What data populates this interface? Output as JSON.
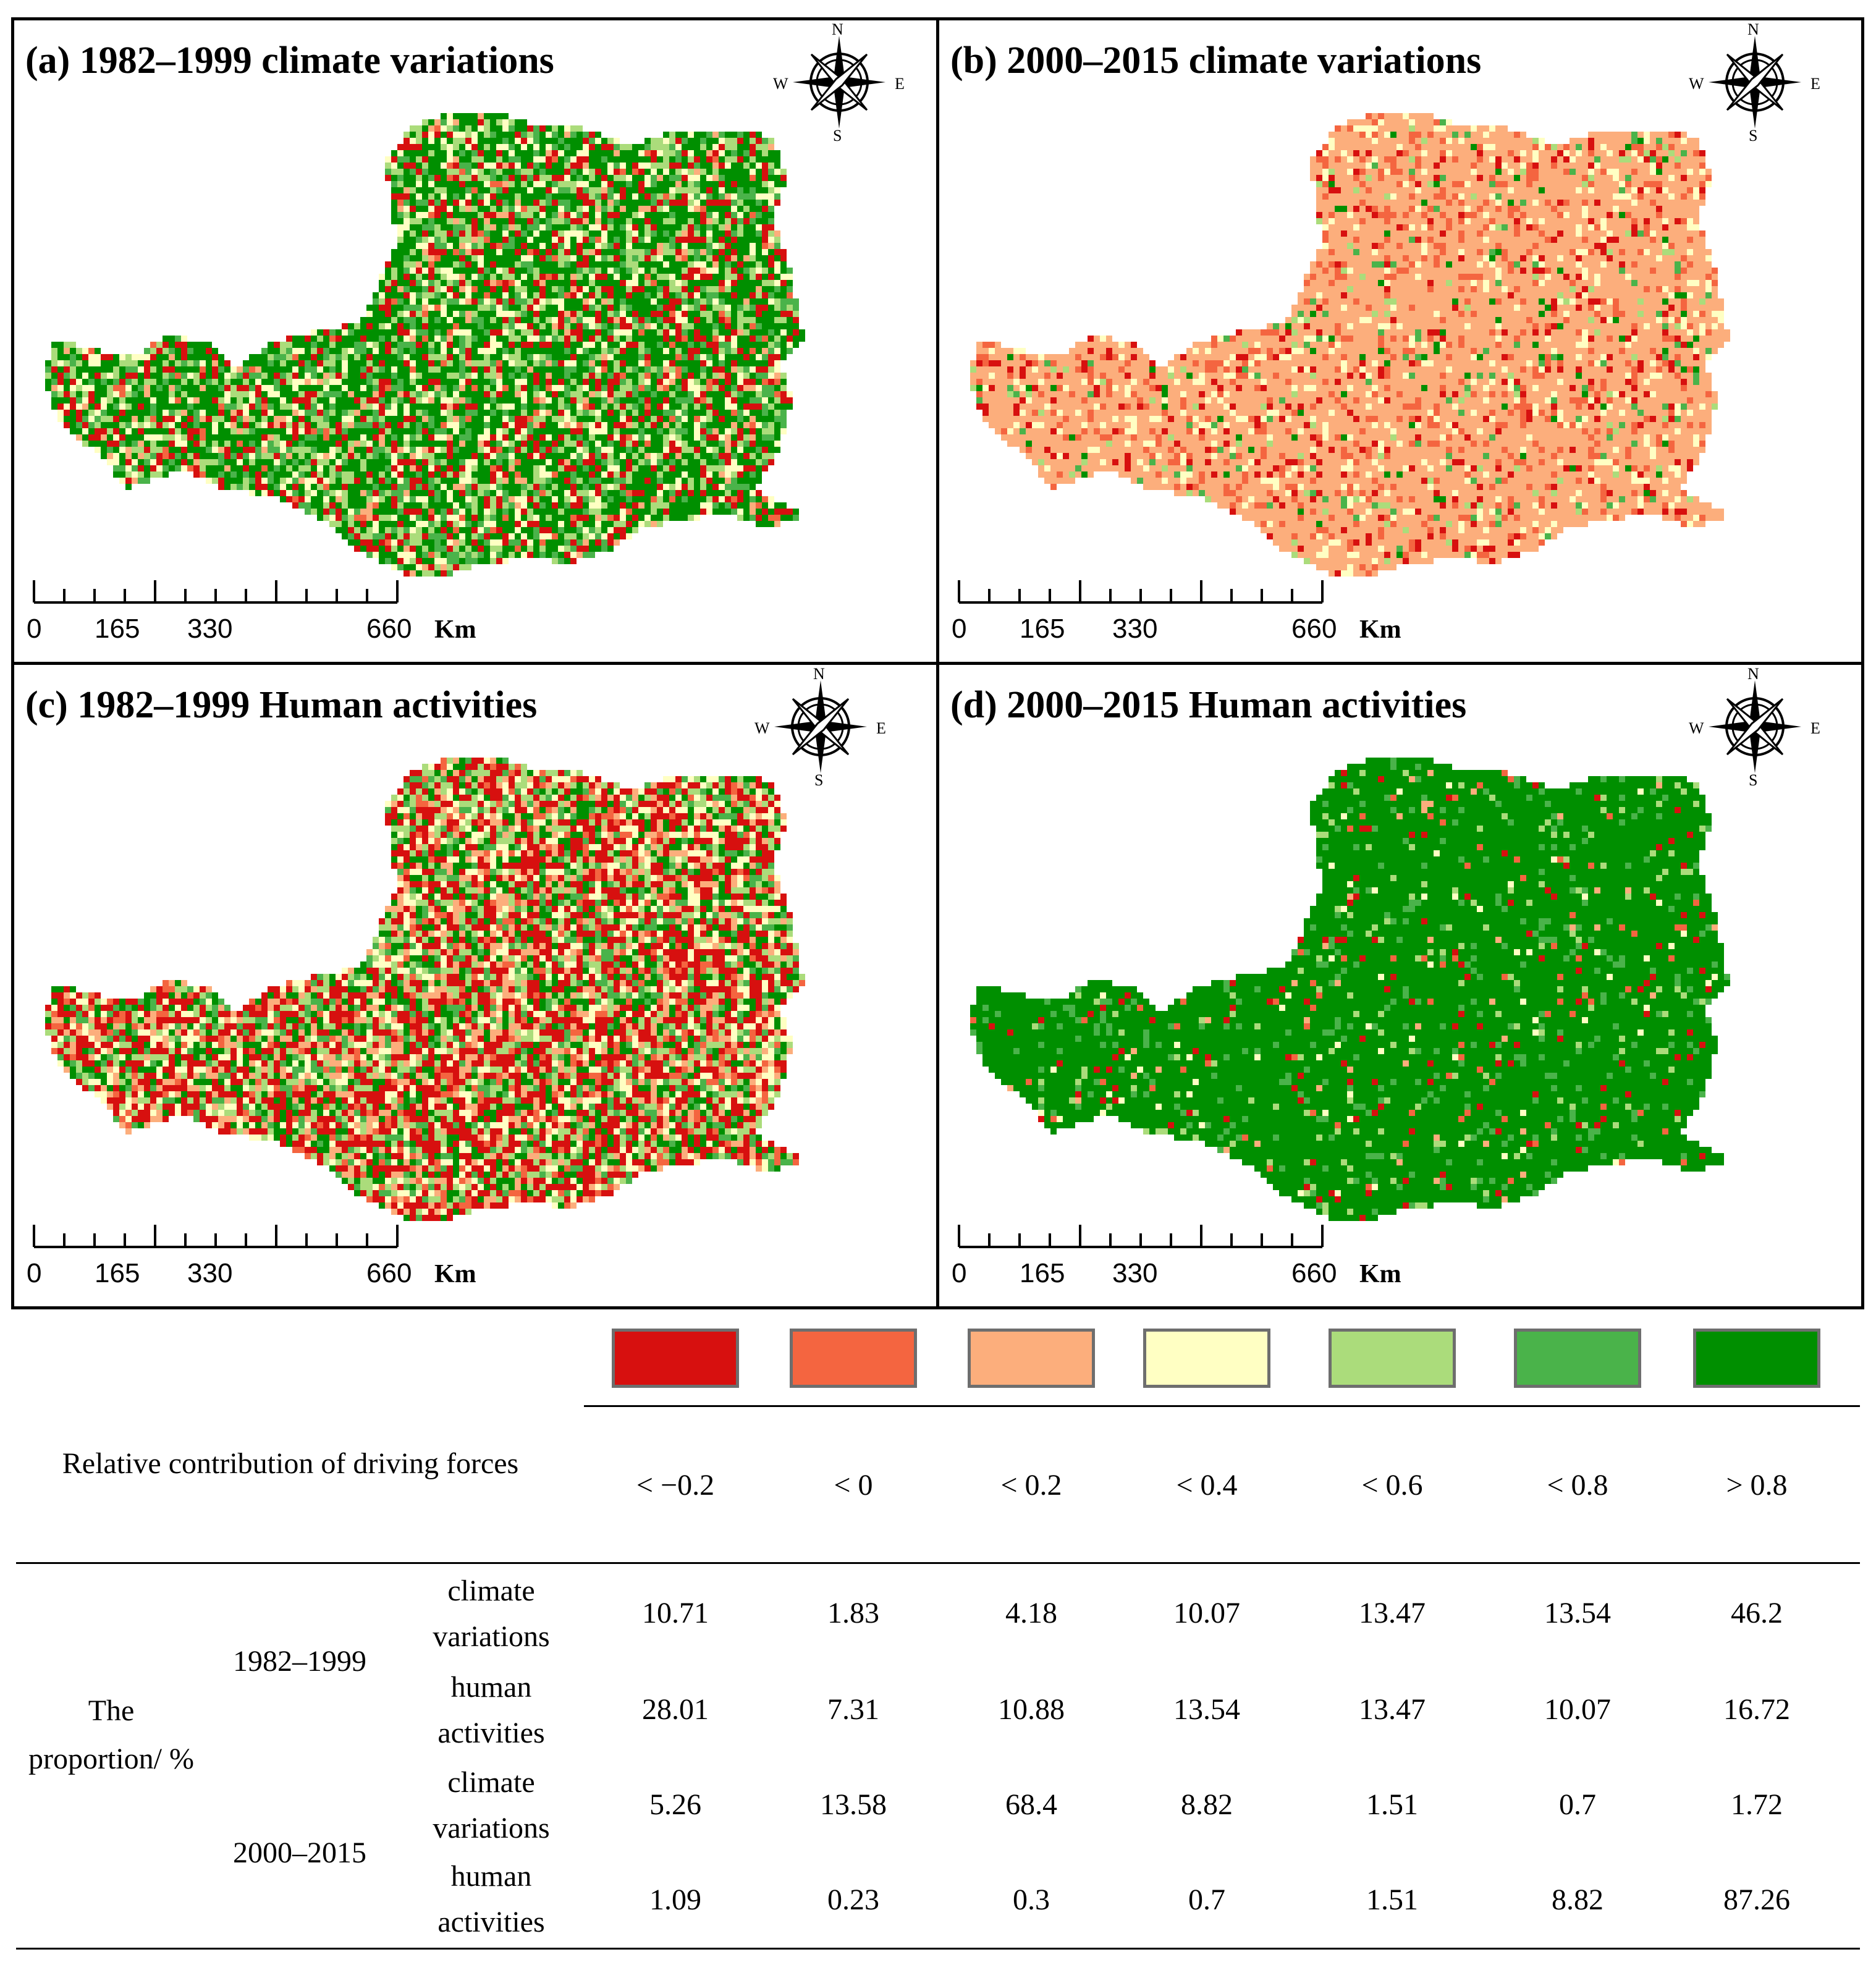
{
  "panels": [
    {
      "title": "(a) 1982–1999 climate variations",
      "palette": "climate_early"
    },
    {
      "title": "(b) 2000–2015 climate variations",
      "palette": "climate_late"
    },
    {
      "title": "(c) 1982–1999 Human activities",
      "palette": "human_early"
    },
    {
      "title": "(d) 2000–2015 Human activities",
      "palette": "human_late"
    }
  ],
  "compass": {
    "n": "N",
    "s": "S",
    "e": "E",
    "w": "W"
  },
  "scalebar": {
    "labels": [
      "0",
      "165",
      "330",
      "660"
    ],
    "unit": "Km"
  },
  "legend": {
    "colors": [
      "#d7100f",
      "#f46540",
      "#fcae7c",
      "#ffffc3",
      "#abdc7b",
      "#4ab34a",
      "#008f00"
    ],
    "header": "Relative contribution of driving forces",
    "classes": [
      "< −0.2",
      "< 0",
      "< 0.2",
      "< 0.4",
      "< 0.6",
      "< 0.8",
      "> 0.8"
    ]
  },
  "table": {
    "row_header": "The proportion/ %",
    "periods": [
      "1982–1999",
      "2000–2015"
    ],
    "rows": [
      {
        "driver": "climate variations",
        "values": [
          "10.71",
          "1.83",
          "4.18",
          "10.07",
          "13.47",
          "13.54",
          "46.2"
        ]
      },
      {
        "driver": "human activities",
        "values": [
          "28.01",
          "7.31",
          "10.88",
          "13.54",
          "13.47",
          "10.07",
          "16.72"
        ]
      },
      {
        "driver": "climate variations",
        "values": [
          "5.26",
          "13.58",
          "68.4",
          "8.82",
          "1.51",
          "0.7",
          "1.72"
        ]
      },
      {
        "driver": "human activities",
        "values": [
          "1.09",
          "0.23",
          "0.3",
          "0.7",
          "1.51",
          "8.82",
          "87.26"
        ]
      }
    ]
  }
}
